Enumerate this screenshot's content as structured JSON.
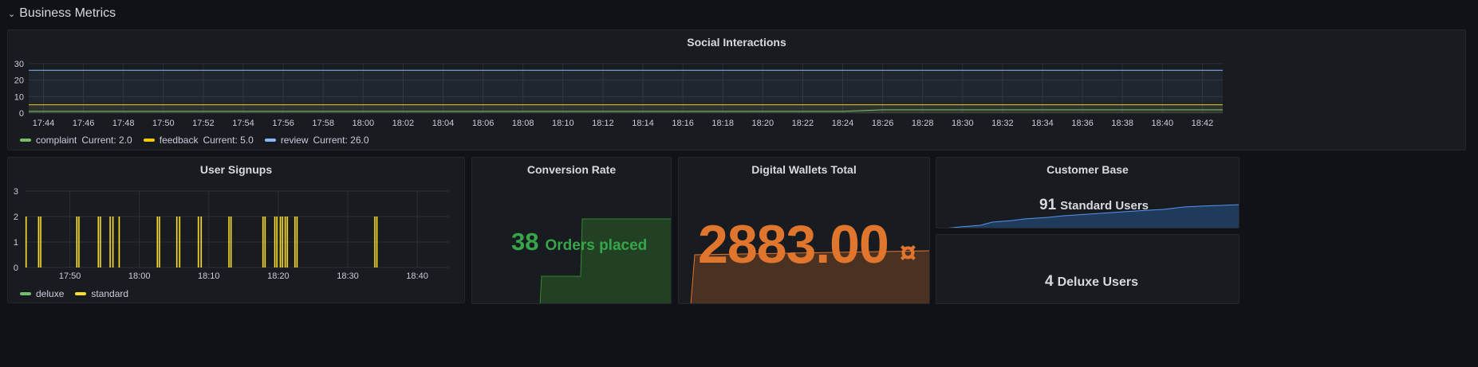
{
  "row": {
    "title": "Business Metrics",
    "chevron_icon": "chevron-down-icon"
  },
  "colors": {
    "complaint": "#73bf69",
    "feedback": "#f2cc0c",
    "review": "#8ab8ff",
    "deluxe": "#73bf69",
    "standard": "#fade2a",
    "conversion": "#37872d",
    "wallets": "#e0752d",
    "customers": "#5794f2"
  },
  "social": {
    "title": "Social Interactions",
    "legend": [
      {
        "name": "complaint",
        "label": "complaint",
        "current": "Current: 2.0"
      },
      {
        "name": "feedback",
        "label": "feedback",
        "current": "Current: 5.0"
      },
      {
        "name": "review",
        "label": "review",
        "current": "Current: 26.0"
      }
    ]
  },
  "signups": {
    "title": "User Signups",
    "legend": [
      {
        "name": "deluxe",
        "label": "deluxe"
      },
      {
        "name": "standard",
        "label": "standard"
      }
    ]
  },
  "conversion": {
    "title": "Conversion Rate",
    "value": "38",
    "unit": "Orders placed"
  },
  "wallets": {
    "title": "Digital Wallets Total",
    "value": "2883.00",
    "unit": "¤"
  },
  "customers": {
    "title": "Customer Base",
    "standard_value": "91",
    "standard_unit": "Standard Users",
    "deluxe_value": "4",
    "deluxe_unit": "Deluxe Users"
  },
  "chart_data": [
    {
      "type": "line",
      "title": "Social Interactions",
      "x": [
        "17:44",
        "17:46",
        "17:48",
        "17:50",
        "17:52",
        "17:54",
        "17:56",
        "17:58",
        "18:00",
        "18:02",
        "18:04",
        "18:06",
        "18:08",
        "18:10",
        "18:12",
        "18:14",
        "18:16",
        "18:18",
        "18:20",
        "18:22",
        "18:24",
        "18:26",
        "18:28",
        "18:30",
        "18:32",
        "18:34",
        "18:36",
        "18:38",
        "18:40",
        "18:42"
      ],
      "ylim": [
        0,
        30
      ],
      "yticks": [
        0,
        10,
        20,
        30
      ],
      "series": [
        {
          "name": "complaint",
          "values": [
            1,
            1,
            1,
            1,
            1,
            1,
            1,
            1,
            1,
            1,
            1,
            1,
            1,
            1,
            1,
            1,
            1,
            1,
            1,
            1,
            1,
            2,
            2,
            2,
            2,
            2,
            2,
            2,
            2,
            2
          ]
        },
        {
          "name": "feedback",
          "values": [
            5,
            5,
            5,
            5,
            5,
            5,
            5,
            5,
            5,
            5,
            5,
            5,
            5,
            5,
            5,
            5,
            5,
            5,
            5,
            5,
            5,
            5,
            5,
            5,
            5,
            5,
            5,
            5,
            5,
            5
          ]
        },
        {
          "name": "review",
          "values": [
            26,
            26,
            26,
            26,
            26,
            26,
            26,
            26,
            26,
            26,
            26,
            26,
            26,
            26,
            26,
            26,
            26,
            26,
            26,
            26,
            26,
            26,
            26,
            26,
            26,
            26,
            26,
            26,
            26,
            26
          ]
        }
      ]
    },
    {
      "type": "bar",
      "title": "User Signups",
      "xticks": [
        "17:50",
        "18:00",
        "18:10",
        "18:20",
        "18:30",
        "18:40"
      ],
      "xtick_minutes": [
        50,
        60,
        70,
        80,
        90,
        100
      ],
      "xrange_minutes": [
        43.5,
        104.7
      ],
      "ylim": [
        0,
        3
      ],
      "yticks": [
        0,
        1,
        2,
        3
      ],
      "series": [
        {
          "name": "deluxe",
          "minutes": [],
          "values": []
        },
        {
          "name": "standard",
          "minutes": [
            43.7,
            45.5,
            45.8,
            51.0,
            51.3,
            54.1,
            54.4,
            55.8,
            56.2,
            57.1,
            62.6,
            62.9,
            65.4,
            65.8,
            68.5,
            68.9,
            72.9,
            73.2,
            77.8,
            78.1,
            79.5,
            79.8,
            80.3,
            80.6,
            81.0,
            81.3,
            82.4,
            82.7,
            93.9,
            94.2
          ],
          "values": [
            2,
            2,
            2,
            2,
            2,
            2,
            2,
            2,
            2,
            2,
            2,
            2,
            2,
            2,
            2,
            2,
            2,
            2,
            2,
            2,
            2,
            2,
            2,
            2,
            2,
            2,
            2,
            2,
            2,
            2
          ]
        }
      ]
    }
  ]
}
